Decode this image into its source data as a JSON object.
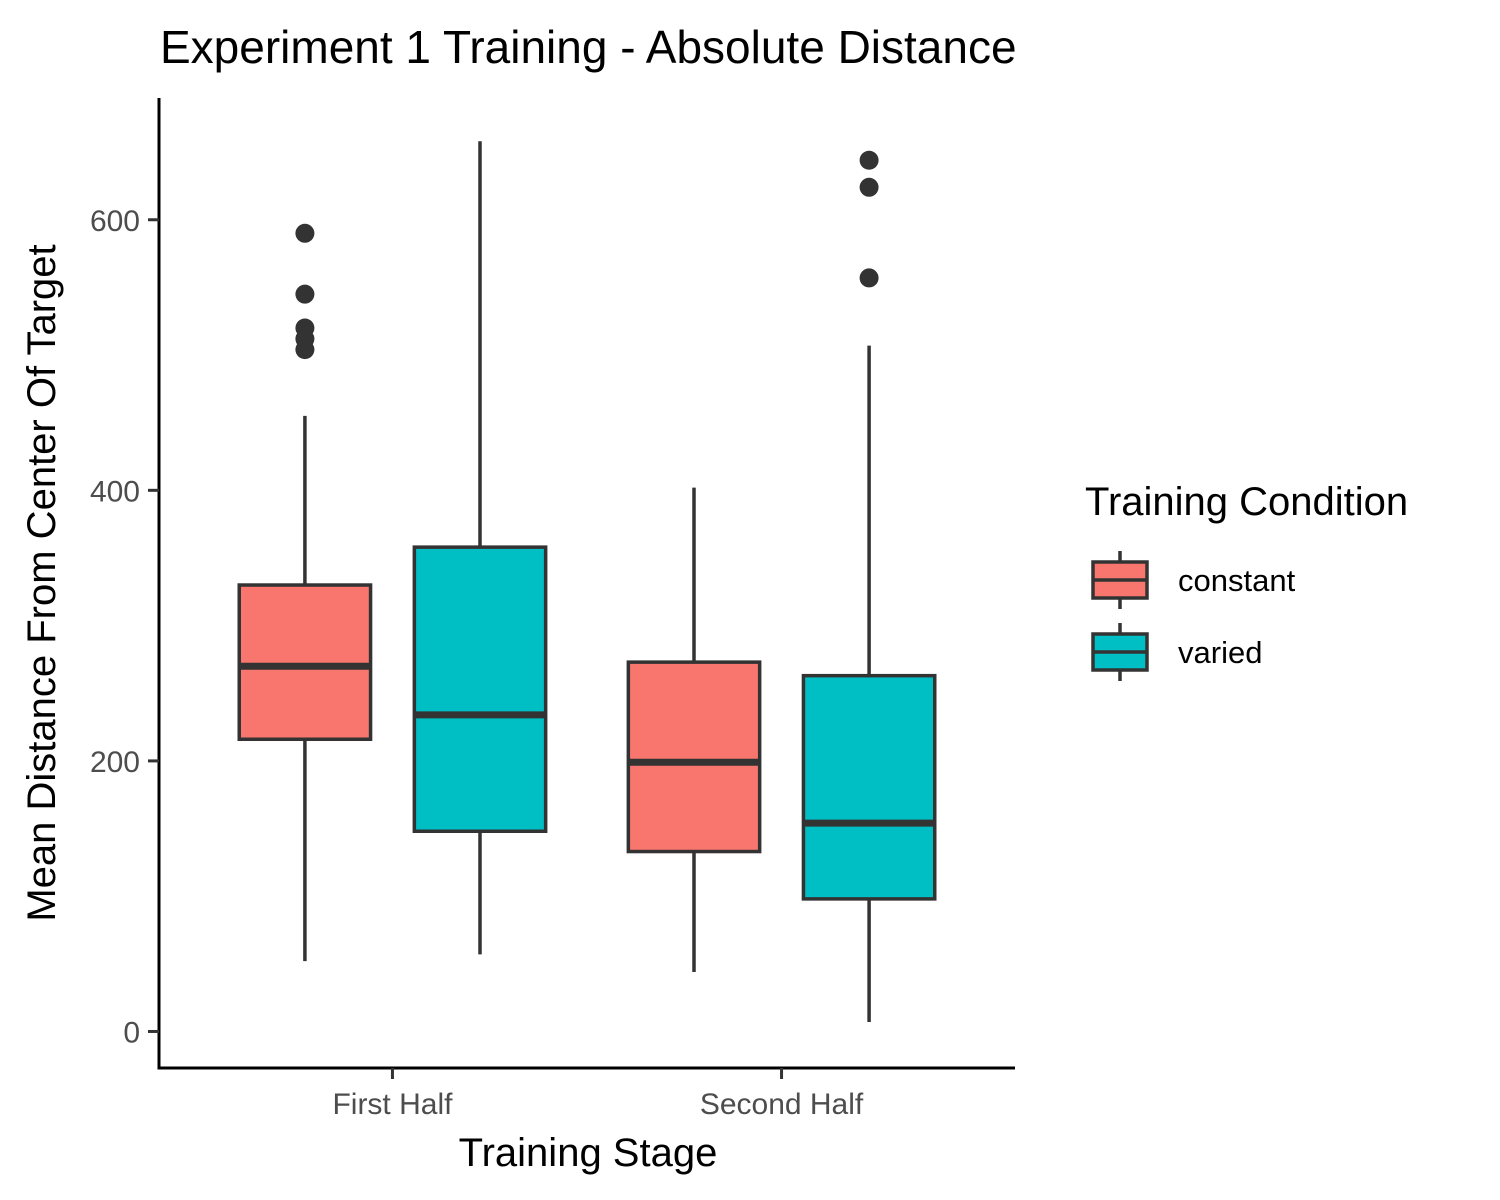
{
  "chart_data": {
    "type": "boxplot",
    "title": "Experiment 1 Training - Absolute Distance",
    "xlabel": "Training Stage",
    "ylabel": "Mean Distance From Center Of Target",
    "categories": [
      "First Half",
      "Second Half"
    ],
    "ylim": [
      -27,
      690
    ],
    "yticks": [
      0,
      200,
      400,
      600
    ],
    "grid": false,
    "legend": {
      "title": "Training Condition",
      "position": "right",
      "entries": [
        {
          "label": "constant",
          "color": "#F8766D"
        },
        {
          "label": "varied",
          "color": "#00BFC4"
        }
      ]
    },
    "series": [
      {
        "name": "constant",
        "color": "#F8766D",
        "boxes": [
          {
            "category": "First Half",
            "min": 52,
            "q1": 216,
            "median": 270,
            "q3": 330,
            "max": 455,
            "outliers": [
              590,
              545,
              520,
              512,
              504
            ]
          },
          {
            "category": "Second Half",
            "min": 44,
            "q1": 133,
            "median": 199,
            "q3": 273,
            "max": 402,
            "outliers": []
          }
        ]
      },
      {
        "name": "varied",
        "color": "#00BFC4",
        "boxes": [
          {
            "category": "First Half",
            "min": 57,
            "q1": 148,
            "median": 234,
            "q3": 358,
            "max": 658,
            "outliers": []
          },
          {
            "category": "Second Half",
            "min": 7,
            "q1": 98,
            "median": 154,
            "q3": 263,
            "max": 507,
            "outliers": [
              644,
              624,
              557
            ]
          }
        ]
      }
    ]
  }
}
